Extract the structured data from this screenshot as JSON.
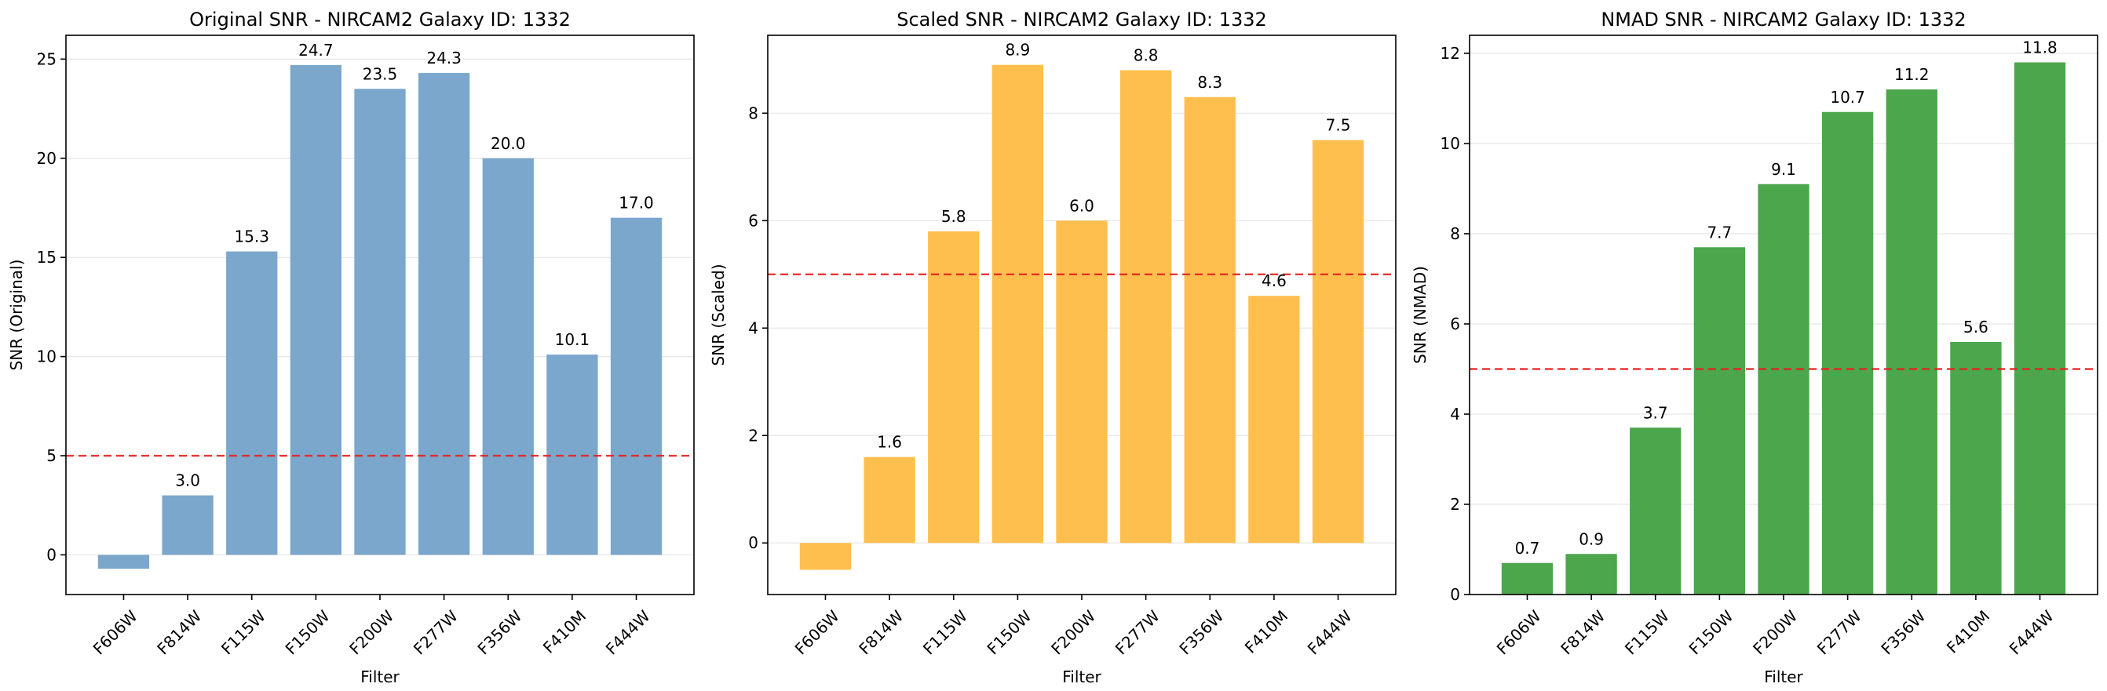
{
  "figure": {
    "background": "#ffffff",
    "threshold_color": "#e8201f"
  },
  "chart_data": [
    {
      "type": "bar",
      "title": "Original SNR - NIRCAM2 Galaxy ID: 1332",
      "xlabel": "Filter",
      "ylabel": "SNR (Original)",
      "categories": [
        "F606W",
        "F814W",
        "F115W",
        "F150W",
        "F200W",
        "F277W",
        "F356W",
        "F410M",
        "F444W"
      ],
      "values": [
        -0.7,
        3.0,
        15.3,
        24.7,
        23.5,
        24.3,
        20.0,
        10.1,
        17.0
      ],
      "data_labels": [
        "",
        "3.0",
        "15.3",
        "24.7",
        "23.5",
        "24.3",
        "20.0",
        "10.1",
        "17.0"
      ],
      "color": "#7ba7cc",
      "threshold": 5,
      "ylim": [
        -2.0,
        26.2
      ],
      "yticks": [
        0,
        5,
        10,
        15,
        20,
        25
      ],
      "grid": "y"
    },
    {
      "type": "bar",
      "title": "Scaled SNR - NIRCAM2 Galaxy ID: 1332",
      "xlabel": "Filter",
      "ylabel": "SNR (Scaled)",
      "categories": [
        "F606W",
        "F814W",
        "F115W",
        "F150W",
        "F200W",
        "F277W",
        "F356W",
        "F410M",
        "F444W"
      ],
      "values": [
        -0.5,
        1.6,
        5.8,
        8.9,
        6.0,
        8.8,
        8.3,
        4.6,
        7.5
      ],
      "data_labels": [
        "",
        "1.6",
        "5.8",
        "8.9",
        "6.0",
        "8.8",
        "8.3",
        "4.6",
        "7.5"
      ],
      "color": "#febf4f",
      "threshold": 5,
      "ylim": [
        -0.96,
        9.45
      ],
      "yticks": [
        0,
        2,
        4,
        6,
        8
      ],
      "grid": "y"
    },
    {
      "type": "bar",
      "title": "NMAD SNR - NIRCAM2 Galaxy ID: 1332",
      "xlabel": "Filter",
      "ylabel": "SNR (NMAD)",
      "categories": [
        "F606W",
        "F814W",
        "F115W",
        "F150W",
        "F200W",
        "F277W",
        "F356W",
        "F410M",
        "F444W"
      ],
      "values": [
        0.7,
        0.9,
        3.7,
        7.7,
        9.1,
        10.7,
        11.2,
        5.6,
        11.8
      ],
      "data_labels": [
        "0.7",
        "0.9",
        "3.7",
        "7.7",
        "9.1",
        "10.7",
        "11.2",
        "5.6",
        "11.8"
      ],
      "color": "#4ca64c",
      "threshold": 5,
      "ylim": [
        0,
        12.4
      ],
      "yticks": [
        0,
        2,
        4,
        6,
        8,
        10,
        12
      ],
      "grid": "y"
    }
  ]
}
